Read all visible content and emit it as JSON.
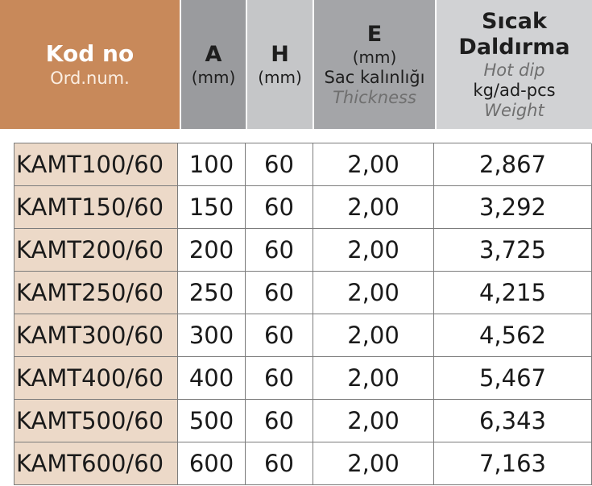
{
  "header": {
    "kod": {
      "title": "Kod no",
      "subtitle": "Ord.num."
    },
    "a": {
      "title": "A",
      "unit": "(mm)"
    },
    "h": {
      "title": "H",
      "unit": "(mm)"
    },
    "e": {
      "title": "E",
      "unit": "(mm)",
      "label": "Sac kalınlığı",
      "label_en": "Thickness"
    },
    "w": {
      "title_line1": "Sıcak",
      "title_line2": "Daldırma",
      "label_en": "Hot dip",
      "unit": "kg/ad-pcs",
      "label_en2": "Weight"
    }
  },
  "rows": [
    {
      "kod": "KAMT100/60",
      "a": "100",
      "h": "60",
      "e": "2,00",
      "w": "2,867"
    },
    {
      "kod": "KAMT150/60",
      "a": "150",
      "h": "60",
      "e": "2,00",
      "w": "3,292"
    },
    {
      "kod": "KAMT200/60",
      "a": "200",
      "h": "60",
      "e": "2,00",
      "w": "3,725"
    },
    {
      "kod": "KAMT250/60",
      "a": "250",
      "h": "60",
      "e": "2,00",
      "w": "4,215"
    },
    {
      "kod": "KAMT300/60",
      "a": "300",
      "h": "60",
      "e": "2,00",
      "w": "4,562"
    },
    {
      "kod": "KAMT400/60",
      "a": "400",
      "h": "60",
      "e": "2,00",
      "w": "5,467"
    },
    {
      "kod": "KAMT500/60",
      "a": "500",
      "h": "60",
      "e": "2,00",
      "w": "6,343"
    },
    {
      "kod": "KAMT600/60",
      "a": "600",
      "h": "60",
      "e": "2,00",
      "w": "7,163"
    }
  ]
}
